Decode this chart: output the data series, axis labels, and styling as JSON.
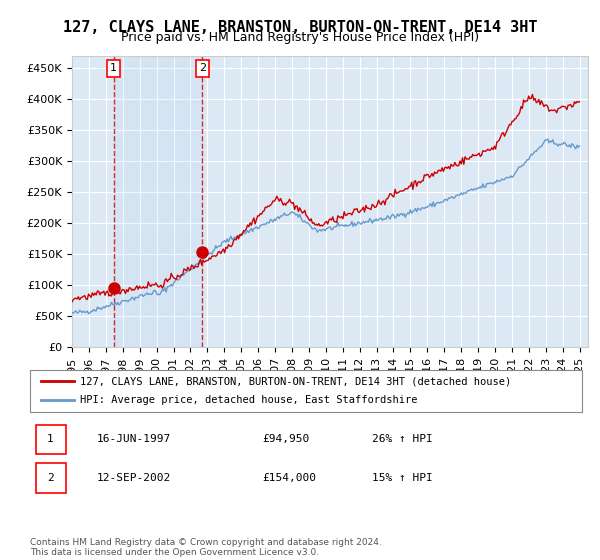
{
  "title": "127, CLAYS LANE, BRANSTON, BURTON-ON-TRENT, DE14 3HT",
  "subtitle": "Price paid vs. HM Land Registry's House Price Index (HPI)",
  "ylabel_ticks": [
    0,
    50000,
    100000,
    150000,
    200000,
    250000,
    300000,
    350000,
    400000,
    450000
  ],
  "ylabel_labels": [
    "£0",
    "£50K",
    "£100K",
    "£150K",
    "£200K",
    "£250K",
    "£300K",
    "£350K",
    "£400K",
    "£450K"
  ],
  "ylim": [
    0,
    470000
  ],
  "xlim_start": 1995.0,
  "xlim_end": 2025.5,
  "sale1_date": 1997.46,
  "sale1_price": 94950,
  "sale2_date": 2002.71,
  "sale2_price": 154000,
  "line_color_red": "#cc0000",
  "line_color_blue": "#6699cc",
  "bg_color": "#dce9f5",
  "grid_color": "#ffffff",
  "legend_line1": "127, CLAYS LANE, BRANSTON, BURTON-ON-TRENT, DE14 3HT (detached house)",
  "legend_line2": "HPI: Average price, detached house, East Staffordshire",
  "table_row1": [
    "1",
    "16-JUN-1997",
    "£94,950",
    "26% ↑ HPI"
  ],
  "table_row2": [
    "2",
    "12-SEP-2002",
    "£154,000",
    "15% ↑ HPI"
  ],
  "footer": "Contains HM Land Registry data © Crown copyright and database right 2024.\nThis data is licensed under the Open Government Licence v3.0.",
  "title_fontsize": 11,
  "subtitle_fontsize": 9,
  "tick_fontsize": 8
}
